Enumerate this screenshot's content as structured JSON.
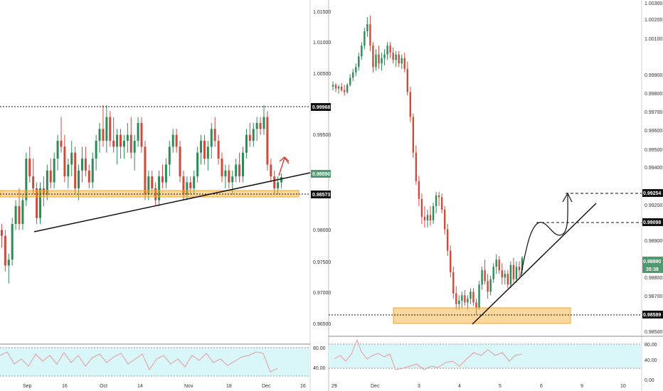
{
  "colors": {
    "up": "#2e8b57",
    "down": "#cd4a3c",
    "zone": "#f5a623",
    "rsi_band": "#d9f6f9",
    "rsi_line": "#e79a9a",
    "tag_green": "#4e9a6e"
  },
  "chart_data": [
    {
      "type": "candlestick",
      "title": "",
      "price_ticks": [
        "1.01500",
        "1.01000",
        "1.00500",
        "0.99968",
        "0.99500",
        "0.98890",
        "0.98573",
        "0.98000",
        "0.97500",
        "0.97000",
        "0.96500"
      ],
      "x_ticks": [
        "Sep",
        "16",
        "Oct",
        "14",
        "Nov",
        "18",
        "Dec",
        "16"
      ],
      "ylim": [
        0.9615,
        1.0175
      ],
      "levels": [
        {
          "label": "0.99968",
          "value": 0.99968,
          "style": "dashed"
        },
        {
          "label": "0.98573",
          "value": 0.98573,
          "style": "zone"
        }
      ],
      "last_price": {
        "label": "0.98890",
        "value": 0.9889
      },
      "trendline": {
        "from": {
          "x": 12,
          "y": 0.9798
        },
        "to": {
          "x": 98,
          "y": 0.9897
        }
      },
      "rsi": {
        "ticks": [
          "80.00",
          "40.00"
        ],
        "band": [
          30,
          70
        ]
      },
      "ohlc": [
        [
          0.98,
          0.981,
          0.977,
          0.979
        ],
        [
          0.979,
          0.98,
          0.973,
          0.974
        ],
        [
          0.974,
          0.976,
          0.971,
          0.975
        ],
        [
          0.975,
          0.982,
          0.974,
          0.981
        ],
        [
          0.981,
          0.985,
          0.98,
          0.984
        ],
        [
          0.984,
          0.987,
          0.98,
          0.981
        ],
        [
          0.981,
          0.986,
          0.98,
          0.985
        ],
        [
          0.985,
          0.993,
          0.984,
          0.992
        ],
        [
          0.992,
          0.994,
          0.988,
          0.989
        ],
        [
          0.989,
          0.992,
          0.986,
          0.987
        ],
        [
          0.987,
          0.988,
          0.981,
          0.982
        ],
        [
          0.982,
          0.988,
          0.981,
          0.987
        ],
        [
          0.987,
          0.989,
          0.984,
          0.986
        ],
        [
          0.986,
          0.991,
          0.985,
          0.99
        ],
        [
          0.99,
          0.992,
          0.987,
          0.988
        ],
        [
          0.988,
          0.993,
          0.987,
          0.992
        ],
        [
          0.992,
          0.996,
          0.99,
          0.995
        ],
        [
          0.995,
          0.999,
          0.993,
          0.994
        ],
        [
          0.994,
          0.996,
          0.988,
          0.989
        ],
        [
          0.989,
          0.992,
          0.987,
          0.991
        ],
        [
          0.991,
          0.995,
          0.989,
          0.993
        ],
        [
          0.993,
          0.994,
          0.986,
          0.987
        ],
        [
          0.987,
          0.991,
          0.985,
          0.99
        ],
        [
          0.99,
          0.994,
          0.988,
          0.992
        ],
        [
          0.992,
          0.994,
          0.989,
          0.99
        ],
        [
          0.99,
          0.991,
          0.987,
          0.988
        ],
        [
          0.988,
          0.993,
          0.987,
          0.992
        ],
        [
          0.992,
          0.996,
          0.99,
          0.995
        ],
        [
          0.995,
          0.998,
          0.993,
          0.997
        ],
        [
          0.997,
          1.001,
          0.994,
          0.995
        ],
        [
          0.995,
          1.001,
          0.993,
          0.999
        ],
        [
          0.999,
          1.0,
          0.994,
          0.995
        ],
        [
          0.995,
          0.999,
          0.993,
          0.994
        ],
        [
          0.994,
          0.997,
          0.991,
          0.996
        ],
        [
          0.996,
          0.997,
          0.992,
          0.994
        ],
        [
          0.994,
          0.996,
          0.992,
          0.995
        ],
        [
          0.995,
          0.998,
          0.993,
          0.996
        ],
        [
          0.996,
          0.999,
          0.992,
          0.993
        ],
        [
          0.993,
          0.996,
          0.99,
          0.995
        ],
        [
          0.995,
          0.999,
          0.994,
          0.998
        ],
        [
          0.998,
          0.999,
          0.993,
          0.994
        ],
        [
          0.994,
          0.995,
          0.985,
          0.986
        ],
        [
          0.986,
          0.99,
          0.985,
          0.989
        ],
        [
          0.989,
          0.99,
          0.986,
          0.987
        ],
        [
          0.987,
          0.988,
          0.984,
          0.985
        ],
        [
          0.985,
          0.99,
          0.984,
          0.989
        ],
        [
          0.989,
          0.991,
          0.987,
          0.988
        ],
        [
          0.988,
          0.992,
          0.987,
          0.991
        ],
        [
          0.991,
          0.995,
          0.989,
          0.994
        ],
        [
          0.994,
          0.997,
          0.993,
          0.996
        ],
        [
          0.996,
          0.997,
          0.993,
          0.994
        ],
        [
          0.994,
          0.995,
          0.988,
          0.989
        ],
        [
          0.989,
          0.99,
          0.985,
          0.986
        ],
        [
          0.986,
          0.989,
          0.985,
          0.988
        ],
        [
          0.988,
          0.989,
          0.986,
          0.987
        ],
        [
          0.987,
          0.99,
          0.986,
          0.989
        ],
        [
          0.989,
          0.994,
          0.988,
          0.993
        ],
        [
          0.993,
          0.996,
          0.991,
          0.995
        ],
        [
          0.995,
          0.996,
          0.991,
          0.992
        ],
        [
          0.992,
          0.995,
          0.99,
          0.994
        ],
        [
          0.994,
          0.998,
          0.992,
          0.997
        ],
        [
          0.997,
          0.999,
          0.994,
          0.995
        ],
        [
          0.995,
          0.996,
          0.991,
          0.992
        ],
        [
          0.992,
          0.993,
          0.988,
          0.989
        ],
        [
          0.989,
          0.991,
          0.987,
          0.99
        ],
        [
          0.99,
          0.991,
          0.987,
          0.988
        ],
        [
          0.988,
          0.99,
          0.986,
          0.989
        ],
        [
          0.989,
          0.992,
          0.988,
          0.991
        ],
        [
          0.991,
          0.993,
          0.988,
          0.989
        ],
        [
          0.989,
          0.994,
          0.988,
          0.993
        ],
        [
          0.993,
          0.997,
          0.992,
          0.996
        ],
        [
          0.996,
          0.998,
          0.994,
          0.995
        ],
        [
          0.995,
          0.998,
          0.994,
          0.997
        ],
        [
          0.997,
          0.999,
          0.995,
          0.998
        ],
        [
          0.998,
          0.999,
          0.996,
          0.997
        ],
        [
          0.997,
          1.001,
          0.996,
          0.999
        ],
        [
          0.999,
          1.0,
          0.99,
          0.991
        ],
        [
          0.991,
          0.992,
          0.988,
          0.989
        ],
        [
          0.989,
          0.99,
          0.986,
          0.987
        ],
        [
          0.987,
          0.989,
          0.986,
          0.988
        ],
        [
          0.988,
          0.9895,
          0.987,
          0.9889
        ]
      ]
    },
    {
      "type": "candlestick",
      "title": "",
      "price_ticks": [
        "1.00300",
        "1.00200",
        "1.00100",
        "0.99900",
        "0.99800",
        "0.99700",
        "0.99600",
        "0.99500",
        "0.99400",
        "0.99254",
        "0.99200",
        "0.99098",
        "0.98900",
        "0.98800",
        "0.98700",
        "0.98589",
        "0.98500"
      ],
      "x_ticks": [
        "29",
        "Dec",
        "3",
        "4",
        "5",
        "6",
        "9",
        "10"
      ],
      "ylim": [
        0.9847,
        1.0032
      ],
      "levels": [
        {
          "label": "0.99254",
          "value": 0.99254,
          "style": "dashed"
        },
        {
          "label": "0.99098",
          "value": 0.99098,
          "style": "dashed"
        },
        {
          "label": "0.98589",
          "value": 0.98589,
          "style": "zone"
        }
      ],
      "last_price": {
        "label": "0.98890",
        "value": 0.9889
      },
      "countdown": "35:38",
      "rsi": {
        "ticks": [
          "80.00",
          "40.00",
          "0.00"
        ],
        "band": [
          30,
          70
        ]
      },
      "ohlc": [
        [
          0.9985,
          0.9988,
          0.9983,
          0.9986
        ],
        [
          0.9986,
          0.9987,
          0.9982,
          0.9984
        ],
        [
          0.9984,
          0.9986,
          0.9981,
          0.9985
        ],
        [
          0.9985,
          0.9987,
          0.9982,
          0.9983
        ],
        [
          0.9983,
          0.9986,
          0.998,
          0.9982
        ],
        [
          0.9982,
          0.9987,
          0.9981,
          0.9986
        ],
        [
          0.9986,
          0.9992,
          0.9985,
          0.999
        ],
        [
          0.999,
          0.9995,
          0.9988,
          0.9993
        ],
        [
          0.9993,
          0.9998,
          0.9991,
          0.9996
        ],
        [
          0.9996,
          1.0004,
          0.9994,
          1.0002
        ],
        [
          1.0002,
          1.001,
          1.0,
          1.0008
        ],
        [
          1.0008,
          1.0018,
          1.0006,
          1.0016
        ],
        [
          1.0016,
          1.0024,
          1.0013,
          1.002
        ],
        [
          1.002,
          1.0025,
          1.0005,
          1.0008
        ],
        [
          1.0008,
          1.001,
          0.9993,
          0.9996
        ],
        [
          0.9996,
          1.0006,
          0.9994,
          1.0003
        ],
        [
          1.0003,
          1.0008,
          0.9995,
          0.9998
        ],
        [
          0.9998,
          1.0004,
          0.9994,
          1.0001
        ],
        [
          1.0001,
          1.0006,
          0.9997,
          1.0003
        ],
        [
          1.0003,
          1.001,
          1.0,
          1.0008
        ],
        [
          1.0008,
          1.001,
          1.0001,
          1.0004
        ],
        [
          1.0004,
          1.0007,
          0.9998,
          1.0
        ],
        [
          1.0,
          1.0005,
          0.9996,
          1.0003
        ],
        [
          1.0003,
          1.0005,
          0.9996,
          0.9998
        ],
        [
          0.9998,
          1.0003,
          0.9995,
          1.0001
        ],
        [
          1.0001,
          1.0004,
          0.9993,
          0.9995
        ],
        [
          0.9995,
          0.9999,
          0.998,
          0.9982
        ],
        [
          0.9982,
          0.9985,
          0.9965,
          0.9968
        ],
        [
          0.9968,
          0.997,
          0.9945,
          0.9948
        ],
        [
          0.9948,
          0.9952,
          0.993,
          0.9932
        ],
        [
          0.9932,
          0.9935,
          0.9918,
          0.9922
        ],
        [
          0.9922,
          0.9925,
          0.9908,
          0.9912
        ],
        [
          0.9912,
          0.9918,
          0.9906,
          0.991
        ],
        [
          0.991,
          0.9916,
          0.9906,
          0.9913
        ],
        [
          0.9913,
          0.9918,
          0.9907,
          0.991
        ],
        [
          0.991,
          0.992,
          0.9908,
          0.9918
        ],
        [
          0.9918,
          0.9926,
          0.9914,
          0.9924
        ],
        [
          0.9924,
          0.9926,
          0.9918,
          0.9923
        ],
        [
          0.9923,
          0.9925,
          0.9914,
          0.9916
        ],
        [
          0.9916,
          0.9918,
          0.9902,
          0.9905
        ],
        [
          0.9905,
          0.9908,
          0.989,
          0.9893
        ],
        [
          0.9893,
          0.9896,
          0.9878,
          0.9881
        ],
        [
          0.9881,
          0.9884,
          0.9866,
          0.9869
        ],
        [
          0.9869,
          0.9873,
          0.986,
          0.9863
        ],
        [
          0.9863,
          0.9868,
          0.986,
          0.9865
        ],
        [
          0.9865,
          0.987,
          0.9861,
          0.9868
        ],
        [
          0.9868,
          0.9871,
          0.9862,
          0.9864
        ],
        [
          0.9864,
          0.9868,
          0.986,
          0.9866
        ],
        [
          0.9866,
          0.9872,
          0.9863,
          0.987
        ],
        [
          0.987,
          0.9872,
          0.9862,
          0.9864
        ],
        [
          0.9864,
          0.9866,
          0.9857,
          0.9861
        ],
        [
          0.9861,
          0.9876,
          0.986,
          0.9874
        ],
        [
          0.9874,
          0.9884,
          0.9871,
          0.9882
        ],
        [
          0.9882,
          0.9888,
          0.9874,
          0.9876
        ],
        [
          0.9876,
          0.988,
          0.9866,
          0.987
        ],
        [
          0.987,
          0.9879,
          0.9868,
          0.9877
        ],
        [
          0.9877,
          0.9886,
          0.9875,
          0.9884
        ],
        [
          0.9884,
          0.9891,
          0.988,
          0.9888
        ],
        [
          0.9888,
          0.989,
          0.988,
          0.9882
        ],
        [
          0.9882,
          0.9886,
          0.9874,
          0.9878
        ],
        [
          0.9878,
          0.9882,
          0.9874,
          0.988
        ],
        [
          0.988,
          0.9882,
          0.9872,
          0.9874
        ],
        [
          0.9874,
          0.9887,
          0.9872,
          0.9885
        ],
        [
          0.9885,
          0.9889,
          0.9875,
          0.9877
        ],
        [
          0.9877,
          0.9887,
          0.9875,
          0.9884
        ],
        [
          0.9884,
          0.9887,
          0.9878,
          0.9882
        ],
        [
          0.9882,
          0.989,
          0.988,
          0.9889
        ]
      ]
    }
  ]
}
